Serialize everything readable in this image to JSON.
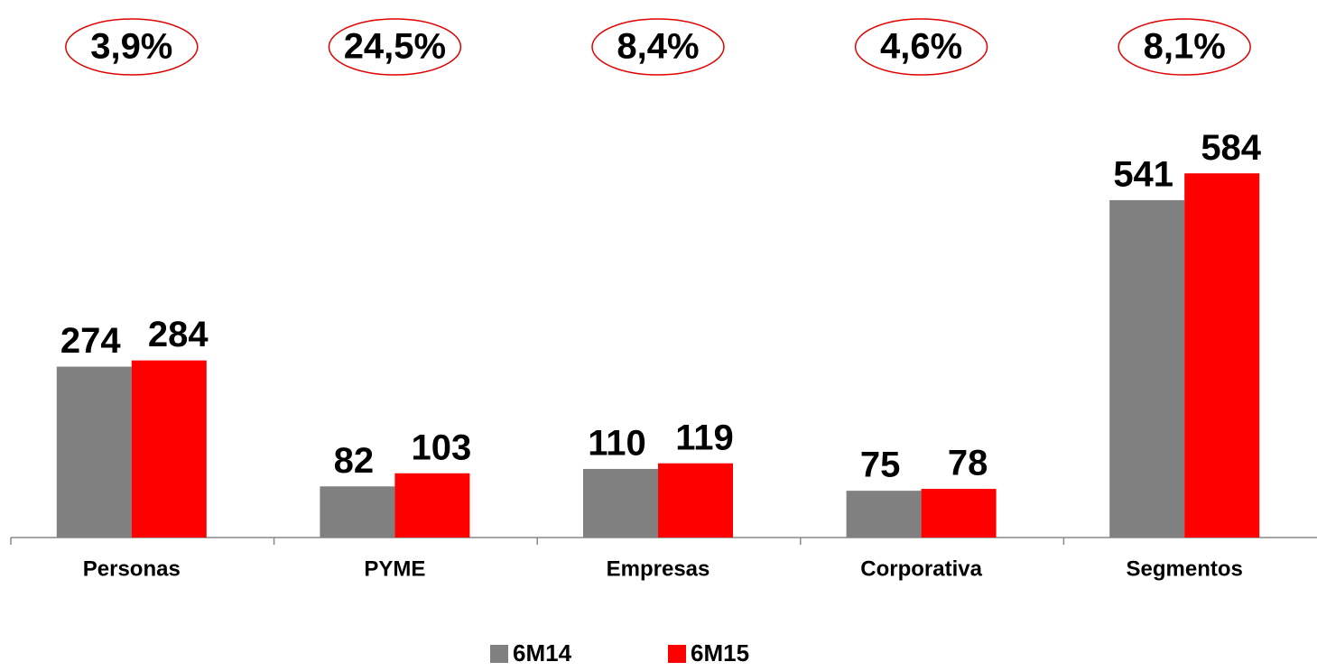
{
  "chart_data": {
    "type": "bar",
    "categories": [
      "Personas",
      "PYME",
      "Empresas",
      "Corporativa",
      "Segmentos"
    ],
    "series": [
      {
        "name": "6M14",
        "color": "#808080",
        "values": [
          274,
          82,
          110,
          75,
          541
        ]
      },
      {
        "name": "6M15",
        "color": "#ff0000",
        "values": [
          284,
          103,
          119,
          78,
          584
        ]
      }
    ],
    "annotations": [
      "3,9%",
      "24,5%",
      "8,4%",
      "4,6%",
      "8,1%"
    ],
    "ylim": [
      0,
      700
    ],
    "legend": "bottom"
  }
}
